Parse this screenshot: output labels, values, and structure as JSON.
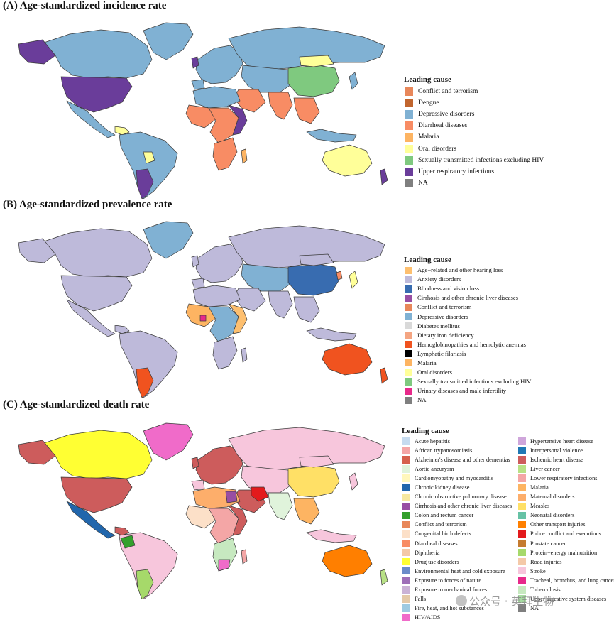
{
  "panels": {
    "a": {
      "title": "(A) Age-standardized incidence rate",
      "legend_title": "Leading cause",
      "legend": [
        {
          "label": "Conflict and terrorism",
          "color": "#E8875A"
        },
        {
          "label": "Dengue",
          "color": "#C1652E"
        },
        {
          "label": "Depressive disorders",
          "color": "#80B1D3"
        },
        {
          "label": "Diarrheal diseases",
          "color": "#F88C64"
        },
        {
          "label": "Malaria",
          "color": "#FDB462"
        },
        {
          "label": "Oral disorders",
          "color": "#FFFF99"
        },
        {
          "label": "Sexually transmitted infections excluding HIV",
          "color": "#7FC97F"
        },
        {
          "label": "Upper respiratory infections",
          "color": "#6A3D9A"
        },
        {
          "label": "NA",
          "color": "#7F7F7F"
        }
      ]
    },
    "b": {
      "title": "(B) Age-standardized prevalence rate",
      "legend_title": "Leading cause",
      "legend": [
        {
          "label": "Age−related and other hearing loss",
          "color": "#FDBF6F"
        },
        {
          "label": "Anxiety disorders",
          "color": "#BEBADA"
        },
        {
          "label": "Blindness and vision loss",
          "color": "#386CB0"
        },
        {
          "label": "Cirrhosis and other chronic liver diseases",
          "color": "#984EA3"
        },
        {
          "label": "Conflict and terrorism",
          "color": "#E8875A"
        },
        {
          "label": "Depressive disorders",
          "color": "#80B1D3"
        },
        {
          "label": "Diabetes mellitus",
          "color": "#D9D9D9"
        },
        {
          "label": "Dietary iron deficiency",
          "color": "#F4A582"
        },
        {
          "label": "Hemoglobinopathies and hemolytic anemias",
          "color": "#F0531F"
        },
        {
          "label": "Lymphatic filariasis",
          "color": "#000000"
        },
        {
          "label": "Malaria",
          "color": "#FDB462"
        },
        {
          "label": "Oral disorders",
          "color": "#FFFF99"
        },
        {
          "label": "Sexually transmitted infections excluding HIV",
          "color": "#7FC97F"
        },
        {
          "label": "Urinary diseases and male infertility",
          "color": "#E7298A"
        },
        {
          "label": "NA",
          "color": "#7F7F7F"
        }
      ]
    },
    "c": {
      "title": "(C) Age-standardized death rate",
      "legend_title": "Leading cause",
      "legend_col1": [
        {
          "label": "Acute hepatitis",
          "color": "#C6DBEF"
        },
        {
          "label": "African trypanosomiasis",
          "color": "#F4A6A6"
        },
        {
          "label": "Alzheimer's disease and other dementias",
          "color": "#D6604D"
        },
        {
          "label": "Aortic aneurysm",
          "color": "#E0F3DB"
        },
        {
          "label": "Cardiomyopathy and myocarditis",
          "color": "#FFF7BC"
        },
        {
          "label": "Chronic kidney disease",
          "color": "#2166AC"
        },
        {
          "label": "Chronic obstructive pulmonary disease",
          "color": "#F6E8A0"
        },
        {
          "label": "Cirrhosis and other chronic liver diseases",
          "color": "#984EA3"
        },
        {
          "label": "Colon and rectum cancer",
          "color": "#33A02C"
        },
        {
          "label": "Conflict and terrorism",
          "color": "#E8875A"
        },
        {
          "label": "Congenital birth defects",
          "color": "#FCE0C8"
        },
        {
          "label": "Diarrheal diseases",
          "color": "#F88C64"
        },
        {
          "label": "Diphtheria",
          "color": "#F4C9A8"
        },
        {
          "label": "Drug use disorders",
          "color": "#FFFF33"
        },
        {
          "label": "Environmental heat and cold exposure",
          "color": "#6B8CC9"
        },
        {
          "label": "Exposure to forces of nature",
          "color": "#9E6FB8"
        },
        {
          "label": "Exposure to mechanical forces",
          "color": "#CAB2D6"
        },
        {
          "label": "Falls",
          "color": "#E4C9A8"
        },
        {
          "label": "Fire, heat, and hot substances",
          "color": "#9ECAE1"
        },
        {
          "label": "HIV/AIDS",
          "color": "#F06BC9"
        }
      ],
      "legend_col2": [
        {
          "label": "Hypertensive heart disease",
          "color": "#CFA6DB"
        },
        {
          "label": "Interpersonal violence",
          "color": "#1F78B4"
        },
        {
          "label": "Ischemic heart disease",
          "color": "#CD5C5C"
        },
        {
          "label": "Liver cancer",
          "color": "#B8E186"
        },
        {
          "label": "Lower respiratory infections",
          "color": "#F4A6A6"
        },
        {
          "label": "Malaria",
          "color": "#FDB462"
        },
        {
          "label": "Maternal disorders",
          "color": "#FDAE6B"
        },
        {
          "label": "Measles",
          "color": "#FFE066"
        },
        {
          "label": "Neonatal disorders",
          "color": "#66C2A5"
        },
        {
          "label": "Other transport injuries",
          "color": "#FF7F00"
        },
        {
          "label": "Police conflict and executions",
          "color": "#E31A1C"
        },
        {
          "label": "Prostate cancer",
          "color": "#C57B30"
        },
        {
          "label": "Protein−energy malnutrition",
          "color": "#A6D96A"
        },
        {
          "label": "Road injuries",
          "color": "#F4C9A8"
        },
        {
          "label": "Stroke",
          "color": "#F7C6DC"
        },
        {
          "label": "Tracheal, bronchus, and lung cancer",
          "color": "#E7298A"
        },
        {
          "label": "Tuberculosis",
          "color": "#C7E9C0"
        },
        {
          "label": "Upper digestive system diseases",
          "color": "#A6DBA0"
        },
        {
          "label": "NA",
          "color": "#7F7F7F"
        }
      ]
    }
  },
  "watermark": "公众号 · 英拜生物"
}
